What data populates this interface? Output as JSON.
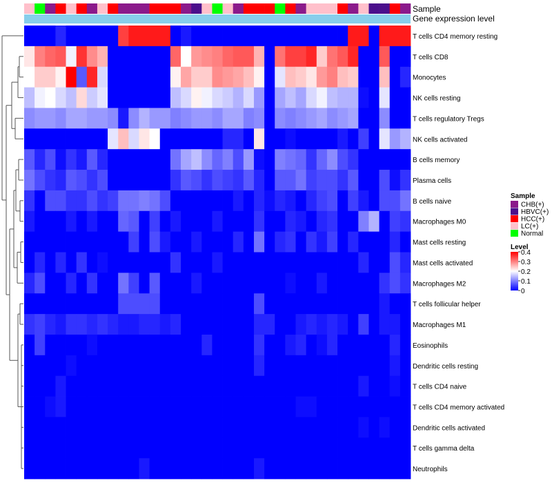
{
  "chart_data": {
    "type": "heatmap",
    "annotation_labels": [
      "Sample",
      "Gene expression level"
    ],
    "rows": [
      "T cells CD4 memory resting",
      "T cells CD8",
      "Monocytes",
      "NK cells resting",
      "T cells regulatory  Tregs",
      "NK cells activated",
      "B cells memory",
      "Plasma cells",
      "B cells naive",
      "Macrophages M0",
      "Mast cells resting",
      "Mast cells activated",
      "Macrophages M2",
      "T cells follicular helper",
      "Macrophages M1",
      "Eosinophils",
      "Dendritic cells resting",
      "T cells CD4 naive",
      "T cells CD4 memory activated",
      "Dendritic cells activated",
      "T cells gamma delta",
      "Neutrophils"
    ],
    "sample_groups": [
      "LC(+)",
      "Normal",
      "CHB(+)",
      "HCC(+)",
      "LC(+)",
      "HCC(+)",
      "CHB(+)",
      "LC(+)",
      "HCC(+)",
      "CHB(+)",
      "CHB(+)",
      "CHB(+)",
      "HCC(+)",
      "HCC(+)",
      "HCC(+)",
      "CHB(+)",
      "HBVC(+)",
      "LC(+)",
      "Normal",
      "LC(+)",
      "CHB(+)",
      "HCC(+)",
      "HCC(+)",
      "HCC(+)",
      "Normal",
      "HCC(+)",
      "CHB(+)",
      "LC(+)",
      "LC(+)",
      "LC(+)",
      "HCC(+)",
      "CHB(+)",
      "LC(+)",
      "HBVC(+)",
      "HBVC(+)",
      "HCC(+)",
      "CHB(+)"
    ],
    "group_colors": {
      "CHB(+)": "#8b1a8b",
      "HBVC(+)": "#4b0f8c",
      "HCC(+)": "#ff0000",
      "LC(+)": "#ffc0cb",
      "Normal": "#00ff00"
    },
    "gene_expression_bar_color": "#87ceeb",
    "values": [
      [
        0.0,
        0.0,
        0.0,
        0.03,
        0.0,
        0.0,
        0.0,
        0.0,
        0.0,
        0.35,
        0.38,
        0.38,
        0.38,
        0.38,
        0.0,
        0.02,
        0.0,
        0.0,
        0.0,
        0.0,
        0.0,
        0.0,
        0.0,
        0.0,
        0.0,
        0.0,
        0.0,
        0.0,
        0.0,
        0.0,
        0.0,
        0.38,
        0.38,
        0.0,
        0.38,
        0.38,
        0.38
      ],
      [
        0.22,
        0.3,
        0.32,
        0.33,
        0.19,
        0.36,
        0.29,
        0.26,
        0.0,
        0.0,
        0.0,
        0.0,
        0.0,
        0.0,
        0.32,
        0.2,
        0.28,
        0.29,
        0.3,
        0.32,
        0.33,
        0.33,
        0.26,
        0.0,
        0.31,
        0.35,
        0.35,
        0.37,
        0.24,
        0.31,
        0.33,
        0.37,
        0.0,
        0.0,
        0.33,
        0.0,
        0.0
      ],
      [
        0.2,
        0.24,
        0.24,
        0.21,
        0.4,
        0.07,
        0.37,
        0.17,
        0.0,
        0.0,
        0.0,
        0.0,
        0.0,
        0.0,
        0.21,
        0.27,
        0.24,
        0.24,
        0.29,
        0.28,
        0.27,
        0.25,
        0.21,
        0.0,
        0.18,
        0.25,
        0.24,
        0.22,
        0.28,
        0.3,
        0.25,
        0.24,
        0.0,
        0.0,
        0.25,
        0.0,
        0.03
      ],
      [
        0.15,
        0.19,
        0.2,
        0.17,
        0.15,
        0.23,
        0.16,
        0.18,
        0.0,
        0.0,
        0.0,
        0.0,
        0.0,
        0.0,
        0.15,
        0.17,
        0.21,
        0.19,
        0.17,
        0.16,
        0.14,
        0.17,
        0.12,
        0.0,
        0.13,
        0.15,
        0.13,
        0.17,
        0.19,
        0.15,
        0.14,
        0.14,
        0.01,
        0.0,
        0.18,
        0.0,
        0.0
      ],
      [
        0.11,
        0.12,
        0.12,
        0.11,
        0.13,
        0.13,
        0.12,
        0.12,
        0.11,
        0.02,
        0.11,
        0.14,
        0.12,
        0.12,
        0.1,
        0.11,
        0.12,
        0.12,
        0.11,
        0.13,
        0.13,
        0.1,
        0.11,
        0.0,
        0.11,
        0.1,
        0.11,
        0.12,
        0.13,
        0.11,
        0.12,
        0.13,
        0.0,
        0.0,
        0.11,
        0.0,
        0.0
      ],
      [
        0.0,
        0.0,
        0.0,
        0.0,
        0.0,
        0.0,
        0.0,
        0.0,
        0.18,
        0.25,
        0.17,
        0.22,
        0.2,
        0.0,
        0.0,
        0.0,
        0.0,
        0.0,
        0.0,
        0.03,
        0.03,
        0.0,
        0.22,
        0.0,
        0.0,
        0.01,
        0.0,
        0.0,
        0.0,
        0.0,
        0.02,
        0.0,
        0.05,
        0.0,
        0.18,
        0.12,
        0.14
      ],
      [
        0.07,
        0.03,
        0.06,
        0.01,
        0.04,
        0.02,
        0.07,
        0.03,
        0.0,
        0.0,
        0.0,
        0.0,
        0.0,
        0.0,
        0.09,
        0.13,
        0.15,
        0.11,
        0.08,
        0.1,
        0.06,
        0.12,
        0.01,
        0.0,
        0.1,
        0.09,
        0.08,
        0.04,
        0.08,
        0.11,
        0.06,
        0.04,
        0.0,
        0.0,
        0.0,
        0.0,
        0.0
      ],
      [
        0.09,
        0.06,
        0.04,
        0.03,
        0.07,
        0.06,
        0.04,
        0.06,
        0.0,
        0.0,
        0.0,
        0.0,
        0.0,
        0.0,
        0.04,
        0.07,
        0.06,
        0.04,
        0.06,
        0.05,
        0.04,
        0.07,
        0.03,
        0.0,
        0.07,
        0.07,
        0.09,
        0.05,
        0.06,
        0.06,
        0.04,
        0.07,
        0.0,
        0.0,
        0.06,
        0.01,
        0.04
      ],
      [
        0.04,
        0.0,
        0.06,
        0.06,
        0.04,
        0.04,
        0.06,
        0.04,
        0.05,
        0.09,
        0.09,
        0.1,
        0.09,
        0.06,
        0.0,
        0.0,
        0.0,
        0.0,
        0.0,
        0.0,
        0.02,
        0.0,
        0.03,
        0.01,
        0.03,
        0.02,
        0.0,
        0.03,
        0.05,
        0.06,
        0.0,
        0.05,
        0.02,
        0.0,
        0.06,
        0.06,
        0.09
      ],
      [
        0.02,
        0.0,
        0.0,
        0.0,
        0.02,
        0.0,
        0.02,
        0.0,
        0.0,
        0.08,
        0.07,
        0.0,
        0.05,
        0.0,
        0.02,
        0.0,
        0.0,
        0.0,
        0.02,
        0.0,
        0.0,
        0.0,
        0.04,
        0.0,
        0.0,
        0.03,
        0.02,
        0.0,
        0.03,
        0.04,
        0.0,
        0.0,
        0.1,
        0.14,
        0.0,
        0.05,
        0.04
      ],
      [
        0.0,
        0.0,
        0.0,
        0.0,
        0.0,
        0.0,
        0.0,
        0.0,
        0.0,
        0.0,
        0.05,
        0.0,
        0.06,
        0.02,
        0.0,
        0.0,
        0.02,
        0.0,
        0.0,
        0.0,
        0.03,
        0.0,
        0.09,
        0.0,
        0.03,
        0.04,
        0.0,
        0.04,
        0.02,
        0.05,
        0.0,
        0.03,
        0.0,
        0.0,
        0.0,
        0.03,
        0.0
      ],
      [
        0.0,
        0.03,
        0.0,
        0.03,
        0.0,
        0.04,
        0.0,
        0.01,
        0.0,
        0.0,
        0.0,
        0.0,
        0.0,
        0.0,
        0.04,
        0.0,
        0.0,
        0.0,
        0.02,
        0.0,
        0.0,
        0.0,
        0.0,
        0.0,
        0.0,
        0.0,
        0.0,
        0.0,
        0.0,
        0.0,
        0.0,
        0.0,
        0.03,
        0.0,
        0.0,
        0.06,
        0.03
      ],
      [
        0.03,
        0.06,
        0.0,
        0.0,
        0.03,
        0.0,
        0.04,
        0.0,
        0.0,
        0.09,
        0.05,
        0.0,
        0.07,
        0.0,
        0.0,
        0.0,
        0.02,
        0.0,
        0.0,
        0.0,
        0.0,
        0.0,
        0.0,
        0.0,
        0.0,
        0.01,
        0.0,
        0.0,
        0.02,
        0.0,
        0.0,
        0.0,
        0.0,
        0.0,
        0.04,
        0.06,
        0.04
      ],
      [
        0.0,
        0.0,
        0.0,
        0.0,
        0.0,
        0.0,
        0.0,
        0.0,
        0.0,
        0.06,
        0.06,
        0.06,
        0.06,
        0.0,
        0.0,
        0.0,
        0.0,
        0.0,
        0.0,
        0.0,
        0.0,
        0.0,
        0.06,
        0.0,
        0.0,
        0.0,
        0.0,
        0.0,
        0.0,
        0.0,
        0.0,
        0.0,
        0.0,
        0.0,
        0.02,
        0.0,
        0.0
      ],
      [
        0.04,
        0.05,
        0.03,
        0.02,
        0.04,
        0.04,
        0.03,
        0.04,
        0.03,
        0.02,
        0.02,
        0.03,
        0.03,
        0.02,
        0.03,
        0.0,
        0.0,
        0.0,
        0.0,
        0.0,
        0.0,
        0.0,
        0.03,
        0.03,
        0.0,
        0.0,
        0.02,
        0.03,
        0.02,
        0.03,
        0.02,
        0.0,
        0.05,
        0.0,
        0.02,
        0.02,
        0.0
      ],
      [
        0.0,
        0.05,
        0.0,
        0.0,
        0.0,
        0.0,
        0.01,
        0.0,
        0.0,
        0.0,
        0.0,
        0.0,
        0.0,
        0.0,
        0.0,
        0.0,
        0.0,
        0.03,
        0.0,
        0.0,
        0.0,
        0.0,
        0.04,
        0.0,
        0.0,
        0.02,
        0.03,
        0.0,
        0.01,
        0.03,
        0.0,
        0.0,
        0.0,
        0.0,
        0.0,
        0.03,
        0.0
      ],
      [
        0.0,
        0.0,
        0.0,
        0.0,
        0.01,
        0.0,
        0.0,
        0.0,
        0.0,
        0.0,
        0.0,
        0.0,
        0.0,
        0.0,
        0.0,
        0.0,
        0.0,
        0.0,
        0.0,
        0.0,
        0.0,
        0.0,
        0.03,
        0.0,
        0.0,
        0.0,
        0.0,
        0.0,
        0.0,
        0.0,
        0.0,
        0.0,
        0.0,
        0.0,
        0.0,
        0.02,
        0.0
      ],
      [
        0.0,
        0.0,
        0.0,
        0.02,
        0.0,
        0.0,
        0.0,
        0.0,
        0.0,
        0.0,
        0.0,
        0.0,
        0.0,
        0.0,
        0.0,
        0.0,
        0.0,
        0.0,
        0.0,
        0.0,
        0.0,
        0.0,
        0.0,
        0.0,
        0.0,
        0.0,
        0.0,
        0.0,
        0.0,
        0.0,
        0.0,
        0.0,
        0.02,
        0.0,
        0.0,
        0.01,
        0.0
      ],
      [
        0.0,
        0.0,
        0.01,
        0.02,
        0.0,
        0.0,
        0.0,
        0.0,
        0.0,
        0.0,
        0.0,
        0.0,
        0.0,
        0.0,
        0.0,
        0.0,
        0.0,
        0.0,
        0.0,
        0.0,
        0.0,
        0.0,
        0.0,
        0.0,
        0.0,
        0.0,
        0.01,
        0.01,
        0.0,
        0.0,
        0.0,
        0.0,
        0.0,
        0.0,
        0.0,
        0.0,
        0.0
      ],
      [
        0.0,
        0.0,
        0.0,
        0.0,
        0.0,
        0.0,
        0.0,
        0.0,
        0.0,
        0.0,
        0.0,
        0.0,
        0.0,
        0.0,
        0.0,
        0.0,
        0.0,
        0.0,
        0.0,
        0.0,
        0.0,
        0.0,
        0.0,
        0.0,
        0.0,
        0.0,
        0.0,
        0.0,
        0.0,
        0.0,
        0.0,
        0.0,
        0.01,
        0.0,
        0.01,
        0.0,
        0.0
      ],
      [
        0.0,
        0.0,
        0.0,
        0.0,
        0.0,
        0.0,
        0.0,
        0.0,
        0.0,
        0.0,
        0.0,
        0.0,
        0.0,
        0.0,
        0.0,
        0.0,
        0.0,
        0.0,
        0.0,
        0.0,
        0.0,
        0.0,
        0.0,
        0.0,
        0.0,
        0.0,
        0.0,
        0.0,
        0.0,
        0.0,
        0.0,
        0.0,
        0.0,
        0.0,
        0.0,
        0.0,
        0.0
      ],
      [
        0.0,
        0.0,
        0.0,
        0.0,
        0.0,
        0.0,
        0.0,
        0.0,
        0.0,
        0.0,
        0.0,
        0.02,
        0.0,
        0.0,
        0.0,
        0.0,
        0.0,
        0.0,
        0.0,
        0.0,
        0.0,
        0.0,
        0.02,
        0.0,
        0.0,
        0.0,
        0.0,
        0.0,
        0.0,
        0.0,
        0.0,
        0.0,
        0.0,
        0.0,
        0.0,
        0.0,
        0.0
      ]
    ],
    "legend": {
      "sample_title": "Sample",
      "sample_entries": [
        "CHB(+)",
        "HBVC(+)",
        "HCC(+)",
        "LC(+)",
        "Normal"
      ],
      "level_title": "Level",
      "level_ticks": [
        "0.4",
        "0.3",
        "0.2",
        "0.1",
        "0"
      ],
      "level_tick_values": [
        0.4,
        0.3,
        0.2,
        0.1,
        0
      ],
      "level_range": [
        0,
        0.4
      ],
      "level_colors": [
        "#0000ff",
        "#ffffff",
        "#ff0000"
      ],
      "placement": "right"
    },
    "dendrogram": "row dendrogram on left"
  }
}
